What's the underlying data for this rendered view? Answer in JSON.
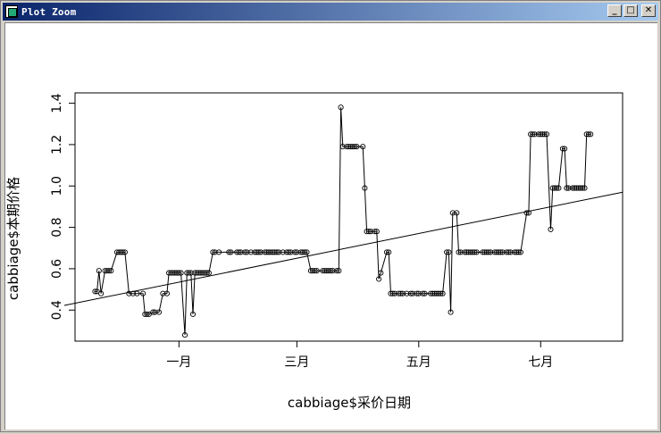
{
  "window": {
    "title": "Plot Zoom",
    "buttons": [
      "minimize",
      "maximize",
      "close"
    ]
  },
  "chart_data": {
    "type": "line",
    "markers": "open-circle",
    "xlabel": "cabbiage$采价日期",
    "ylabel": "cabbiage$本期价格",
    "x_ticks": [
      "一月",
      "三月",
      "五月",
      "七月"
    ],
    "y_ticks": [
      "0.4",
      "0.6",
      "0.8",
      "1.0",
      "1.2",
      "1.4"
    ],
    "ylim": [
      0.25,
      1.45
    ],
    "x_tick_days": [
      32,
      91,
      152,
      213
    ],
    "xlim": [
      -20,
      254
    ],
    "series": [
      {
        "points": [
          [
            -10,
            0.49
          ],
          [
            -9,
            0.49
          ],
          [
            -8,
            0.59
          ],
          [
            -7,
            0.48
          ],
          [
            -5,
            0.59
          ],
          [
            -4,
            0.59
          ],
          [
            -3,
            0.59
          ],
          [
            -2,
            0.59
          ],
          [
            1,
            0.68
          ],
          [
            2,
            0.68
          ],
          [
            3,
            0.68
          ],
          [
            4,
            0.68
          ],
          [
            5,
            0.68
          ],
          [
            7,
            0.48
          ],
          [
            9,
            0.48
          ],
          [
            11,
            0.48
          ],
          [
            14,
            0.48
          ],
          [
            15,
            0.38
          ],
          [
            16,
            0.38
          ],
          [
            17,
            0.38
          ],
          [
            19,
            0.39
          ],
          [
            20,
            0.39
          ],
          [
            22,
            0.39
          ],
          [
            24,
            0.48
          ],
          [
            26,
            0.48
          ],
          [
            27,
            0.58
          ],
          [
            28,
            0.58
          ],
          [
            29,
            0.58
          ],
          [
            30,
            0.58
          ],
          [
            31,
            0.58
          ],
          [
            32,
            0.58
          ],
          [
            33,
            0.58
          ],
          [
            35,
            0.28
          ],
          [
            36,
            0.58
          ],
          [
            37,
            0.58
          ],
          [
            38,
            0.58
          ],
          [
            39,
            0.38
          ],
          [
            40,
            0.58
          ],
          [
            41,
            0.58
          ],
          [
            42,
            0.58
          ],
          [
            43,
            0.58
          ],
          [
            44,
            0.58
          ],
          [
            45,
            0.58
          ],
          [
            46,
            0.58
          ],
          [
            47,
            0.58
          ],
          [
            49,
            0.68
          ],
          [
            50,
            0.68
          ],
          [
            52,
            0.68
          ],
          [
            57,
            0.68
          ],
          [
            58,
            0.68
          ],
          [
            61,
            0.68
          ],
          [
            62,
            0.68
          ],
          [
            63,
            0.68
          ],
          [
            65,
            0.68
          ],
          [
            66,
            0.68
          ],
          [
            68,
            0.68
          ],
          [
            70,
            0.68
          ],
          [
            71,
            0.68
          ],
          [
            72,
            0.68
          ],
          [
            73,
            0.68
          ],
          [
            75,
            0.68
          ],
          [
            76,
            0.68
          ],
          [
            77,
            0.68
          ],
          [
            78,
            0.68
          ],
          [
            79,
            0.68
          ],
          [
            80,
            0.68
          ],
          [
            81,
            0.68
          ],
          [
            82,
            0.68
          ],
          [
            84,
            0.68
          ],
          [
            86,
            0.68
          ],
          [
            87,
            0.68
          ],
          [
            88,
            0.68
          ],
          [
            90,
            0.68
          ],
          [
            91,
            0.68
          ],
          [
            93,
            0.68
          ],
          [
            94,
            0.68
          ],
          [
            95,
            0.68
          ],
          [
            96,
            0.68
          ],
          [
            98,
            0.59
          ],
          [
            99,
            0.59
          ],
          [
            100,
            0.59
          ],
          [
            101,
            0.59
          ],
          [
            104,
            0.59
          ],
          [
            105,
            0.59
          ],
          [
            106,
            0.59
          ],
          [
            107,
            0.59
          ],
          [
            108,
            0.59
          ],
          [
            109,
            0.59
          ],
          [
            111,
            0.59
          ],
          [
            112,
            0.59
          ],
          [
            113,
            1.38
          ],
          [
            114,
            1.19
          ],
          [
            116,
            1.19
          ],
          [
            117,
            1.19
          ],
          [
            118,
            1.19
          ],
          [
            119,
            1.19
          ],
          [
            120,
            1.19
          ],
          [
            121,
            1.19
          ],
          [
            124,
            1.19
          ],
          [
            125,
            0.99
          ],
          [
            126,
            0.78
          ],
          [
            127,
            0.78
          ],
          [
            128,
            0.78
          ],
          [
            130,
            0.78
          ],
          [
            131,
            0.78
          ],
          [
            132,
            0.55
          ],
          [
            133,
            0.58
          ],
          [
            136,
            0.68
          ],
          [
            137,
            0.68
          ],
          [
            138,
            0.48
          ],
          [
            139,
            0.48
          ],
          [
            140,
            0.48
          ],
          [
            142,
            0.48
          ],
          [
            143,
            0.48
          ],
          [
            144,
            0.48
          ],
          [
            146,
            0.48
          ],
          [
            148,
            0.48
          ],
          [
            149,
            0.48
          ],
          [
            151,
            0.48
          ],
          [
            152,
            0.48
          ],
          [
            154,
            0.48
          ],
          [
            155,
            0.48
          ],
          [
            158,
            0.48
          ],
          [
            159,
            0.48
          ],
          [
            160,
            0.48
          ],
          [
            161,
            0.48
          ],
          [
            162,
            0.48
          ],
          [
            163,
            0.48
          ],
          [
            164,
            0.48
          ],
          [
            166,
            0.68
          ],
          [
            167,
            0.68
          ],
          [
            168,
            0.39
          ],
          [
            169,
            0.87
          ],
          [
            171,
            0.87
          ],
          [
            172,
            0.68
          ],
          [
            173,
            0.68
          ],
          [
            175,
            0.68
          ],
          [
            176,
            0.68
          ],
          [
            177,
            0.68
          ],
          [
            178,
            0.68
          ],
          [
            179,
            0.68
          ],
          [
            180,
            0.68
          ],
          [
            181,
            0.68
          ],
          [
            184,
            0.68
          ],
          [
            185,
            0.68
          ],
          [
            186,
            0.68
          ],
          [
            187,
            0.68
          ],
          [
            188,
            0.68
          ],
          [
            190,
            0.68
          ],
          [
            191,
            0.68
          ],
          [
            192,
            0.68
          ],
          [
            193,
            0.68
          ],
          [
            194,
            0.68
          ],
          [
            196,
            0.68
          ],
          [
            197,
            0.68
          ],
          [
            198,
            0.68
          ],
          [
            200,
            0.68
          ],
          [
            201,
            0.68
          ],
          [
            202,
            0.68
          ],
          [
            203,
            0.68
          ],
          [
            206,
            0.87
          ],
          [
            207,
            0.87
          ],
          [
            208,
            1.25
          ],
          [
            209,
            1.25
          ],
          [
            210,
            1.25
          ],
          [
            212,
            1.25
          ],
          [
            213,
            1.25
          ],
          [
            214,
            1.25
          ],
          [
            215,
            1.25
          ],
          [
            216,
            1.25
          ],
          [
            218,
            0.79
          ],
          [
            219,
            0.99
          ],
          [
            220,
            0.99
          ],
          [
            221,
            0.99
          ],
          [
            222,
            0.99
          ],
          [
            224,
            1.18
          ],
          [
            225,
            1.18
          ],
          [
            226,
            0.99
          ],
          [
            227,
            0.99
          ],
          [
            229,
            0.99
          ],
          [
            230,
            0.99
          ],
          [
            231,
            0.99
          ],
          [
            232,
            0.99
          ],
          [
            233,
            0.99
          ],
          [
            234,
            0.99
          ],
          [
            235,
            0.99
          ],
          [
            236,
            1.25
          ],
          [
            237,
            1.25
          ],
          [
            238,
            1.25
          ]
        ]
      }
    ],
    "regression_line": {
      "x": [
        -20,
        254
      ],
      "y": [
        0.44,
        0.97
      ]
    }
  }
}
